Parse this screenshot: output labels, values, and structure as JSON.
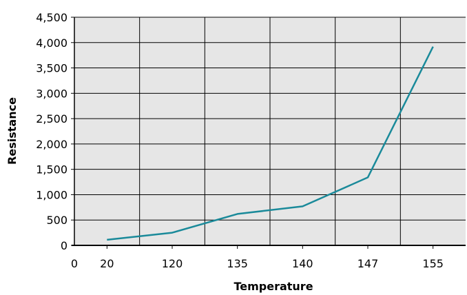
{
  "chart_data": {
    "type": "line",
    "title": "",
    "xlabel": "Temperature",
    "ylabel": "Resistance",
    "x_tick_labels": [
      "0",
      "20",
      "120",
      "135",
      "140",
      "147",
      "155"
    ],
    "y_tick_labels": [
      "0",
      "500",
      "1,000",
      "1,500",
      "2,000",
      "2,500",
      "3,000",
      "3,500",
      "4,000",
      "4,500"
    ],
    "x": [
      "20",
      "120",
      "135",
      "140",
      "147",
      "155"
    ],
    "ylim": [
      0,
      4500
    ],
    "y_step": 500,
    "grid": true,
    "legend": "none",
    "series": [
      {
        "values": [
          110,
          250,
          620,
          770,
          1340,
          3920
        ]
      }
    ],
    "colors": {
      "plot_background": "#e6e6e6",
      "grid": "#000000",
      "line": "#1a8a9a"
    }
  }
}
